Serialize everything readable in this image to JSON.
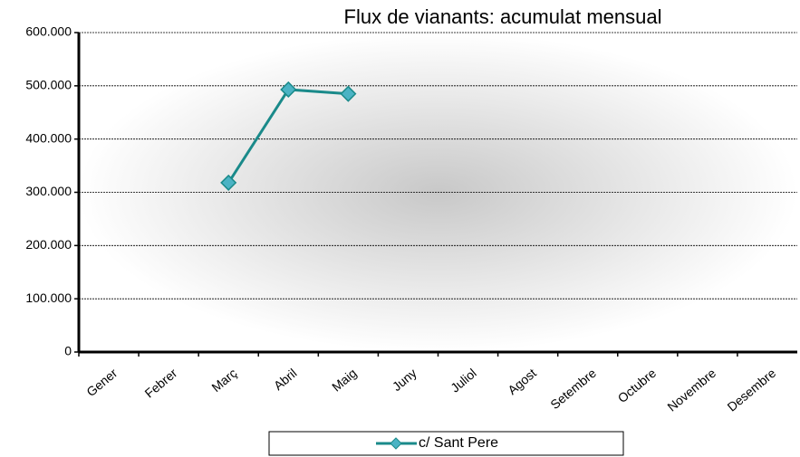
{
  "chart_data": {
    "type": "line",
    "title": "Flux de vianants: acumulat mensual",
    "categories": [
      "Gener",
      "Febrer",
      "Març",
      "Abril",
      "Maig",
      "Juny",
      "Juliol",
      "Agost",
      "Setembre",
      "Octubre",
      "Novembre",
      "Desembre"
    ],
    "series": [
      {
        "name": "c/ Sant Pere",
        "color": "#1a8a8a",
        "marker_color": "#4bb3c4",
        "values": [
          null,
          null,
          318000,
          493000,
          485000,
          null,
          null,
          null,
          null,
          null,
          null,
          null
        ]
      }
    ],
    "ylim": [
      0,
      600000
    ],
    "yticks": [
      0,
      {
        "value": 100000,
        "label": "100.000"
      },
      {
        "value": 200000,
        "label": "200.000"
      },
      {
        "value": 300000,
        "label": "300.000"
      },
      {
        "value": 400000,
        "label": "400.000"
      },
      {
        "value": 500000,
        "label": "500.000"
      },
      {
        "value": 600000,
        "label": "600.000"
      }
    ],
    "grid": true,
    "legend": "bottom"
  }
}
